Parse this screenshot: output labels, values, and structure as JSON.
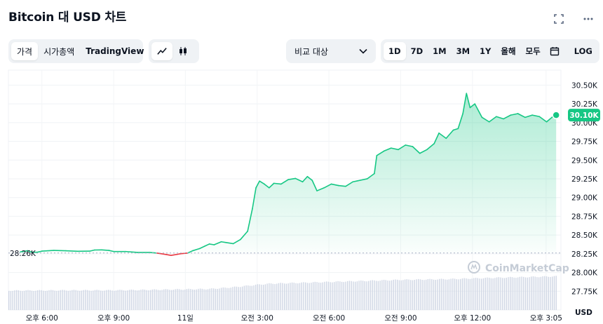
{
  "header": {
    "title": "Bitcoin 대 USD 차트"
  },
  "tabs": {
    "price": "가격",
    "market_cap": "시가총액",
    "tradingview": "TradingView"
  },
  "chart_type_icons": [
    "line-chart-icon",
    "candlestick-icon"
  ],
  "compare": {
    "label": "비교 대상"
  },
  "timeframes": [
    "1D",
    "7D",
    "1M",
    "3M",
    "1Y",
    "올해",
    "모두"
  ],
  "active_timeframe": "1D",
  "log_label": "LOG",
  "watermark": "CoinMarketCap",
  "colors": {
    "up": "#16c784",
    "down": "#ea3943",
    "text": "#0d1421",
    "muted": "#58667e",
    "volume": "#cfd6e4"
  },
  "chart_data": {
    "type": "area",
    "title": "",
    "xlabel": "",
    "ylabel": "USD",
    "unit_label": "USD",
    "ylim": [
      27500,
      30700
    ],
    "y_ticks": [
      {
        "value": 30500,
        "label": "30.50K"
      },
      {
        "value": 30250,
        "label": "30.25K"
      },
      {
        "value": 30000,
        "label": "30.00K"
      },
      {
        "value": 29750,
        "label": "29.75K"
      },
      {
        "value": 29500,
        "label": "29.50K"
      },
      {
        "value": 29250,
        "label": "29.25K"
      },
      {
        "value": 29000,
        "label": "29.00K"
      },
      {
        "value": 28750,
        "label": "28.75K"
      },
      {
        "value": 28500,
        "label": "28.50K"
      },
      {
        "value": 28250,
        "label": "28.25K"
      },
      {
        "value": 28000,
        "label": "28.00K"
      },
      {
        "value": 27750,
        "label": "27.75K"
      }
    ],
    "x_range_hours": [
      -7.4,
      15.7
    ],
    "x_ticks": [
      {
        "hour": -6,
        "label": "오후 6:00"
      },
      {
        "hour": -3,
        "label": "오후 9:00"
      },
      {
        "hour": 0,
        "label": "11일"
      },
      {
        "hour": 3,
        "label": "오전 3:00"
      },
      {
        "hour": 6,
        "label": "오전 6:00"
      },
      {
        "hour": 9,
        "label": "오전 9:00"
      },
      {
        "hour": 12,
        "label": "오후 12:00"
      },
      {
        "hour": 15.08,
        "label": "오후 3:05"
      }
    ],
    "baseline": {
      "value": 28260,
      "label": "28.26K"
    },
    "current": {
      "value": 30100,
      "label": "30.10K"
    },
    "series": [
      {
        "points": [
          [
            -6.9,
            28275
          ],
          [
            -6.6,
            28290
          ],
          [
            -6.4,
            28270
          ],
          [
            -6.2,
            28270
          ],
          [
            -6.0,
            28285
          ],
          [
            -5.5,
            28295
          ],
          [
            -5.0,
            28290
          ],
          [
            -4.5,
            28283
          ],
          [
            -4.0,
            28285
          ],
          [
            -3.8,
            28300
          ],
          [
            -3.5,
            28302
          ],
          [
            -3.2,
            28295
          ],
          [
            -3.0,
            28280
          ],
          [
            -2.5,
            28280
          ],
          [
            -2.0,
            28268
          ],
          [
            -1.5,
            28268
          ],
          [
            -1.2,
            28260
          ],
          [
            -0.8,
            28240
          ],
          [
            -0.6,
            28228
          ],
          [
            -0.2,
            28250
          ],
          [
            0.1,
            28260
          ],
          [
            0.3,
            28290
          ],
          [
            0.6,
            28320
          ],
          [
            0.8,
            28350
          ],
          [
            1.0,
            28380
          ],
          [
            1.2,
            28370
          ],
          [
            1.5,
            28410
          ],
          [
            1.7,
            28400
          ],
          [
            2.0,
            28385
          ],
          [
            2.3,
            28440
          ],
          [
            2.6,
            28550
          ],
          [
            2.8,
            28850
          ],
          [
            2.95,
            29130
          ],
          [
            3.1,
            29220
          ],
          [
            3.3,
            29180
          ],
          [
            3.5,
            29130
          ],
          [
            3.7,
            29190
          ],
          [
            4.0,
            29180
          ],
          [
            4.3,
            29240
          ],
          [
            4.6,
            29255
          ],
          [
            4.9,
            29210
          ],
          [
            5.1,
            29280
          ],
          [
            5.3,
            29230
          ],
          [
            5.5,
            29090
          ],
          [
            5.8,
            29130
          ],
          [
            6.1,
            29180
          ],
          [
            6.4,
            29160
          ],
          [
            6.7,
            29150
          ],
          [
            7.0,
            29210
          ],
          [
            7.3,
            29230
          ],
          [
            7.6,
            29250
          ],
          [
            7.9,
            29320
          ],
          [
            8.0,
            29560
          ],
          [
            8.3,
            29620
          ],
          [
            8.6,
            29660
          ],
          [
            8.9,
            29640
          ],
          [
            9.2,
            29700
          ],
          [
            9.5,
            29680
          ],
          [
            9.8,
            29590
          ],
          [
            10.1,
            29640
          ],
          [
            10.4,
            29720
          ],
          [
            10.6,
            29860
          ],
          [
            10.9,
            29790
          ],
          [
            11.2,
            29900
          ],
          [
            11.4,
            29920
          ],
          [
            11.6,
            30120
          ],
          [
            11.75,
            30390
          ],
          [
            11.9,
            30200
          ],
          [
            12.1,
            30250
          ],
          [
            12.4,
            30070
          ],
          [
            12.7,
            30010
          ],
          [
            13.0,
            30080
          ],
          [
            13.3,
            30050
          ],
          [
            13.6,
            30100
          ],
          [
            13.9,
            30120
          ],
          [
            14.2,
            30070
          ],
          [
            14.5,
            30100
          ],
          [
            14.8,
            30080
          ],
          [
            15.1,
            30010
          ],
          [
            15.4,
            30090
          ],
          [
            15.5,
            30100
          ]
        ]
      }
    ],
    "volume": {
      "hours": [
        -7.4,
        -5,
        -3,
        -1,
        1,
        2,
        3,
        3.5,
        5,
        7,
        9,
        11,
        13,
        15.5
      ],
      "levels": [
        0.55,
        0.56,
        0.56,
        0.58,
        0.6,
        0.65,
        0.72,
        0.75,
        0.78,
        0.82,
        0.86,
        0.88,
        0.92,
        0.96
      ]
    }
  }
}
